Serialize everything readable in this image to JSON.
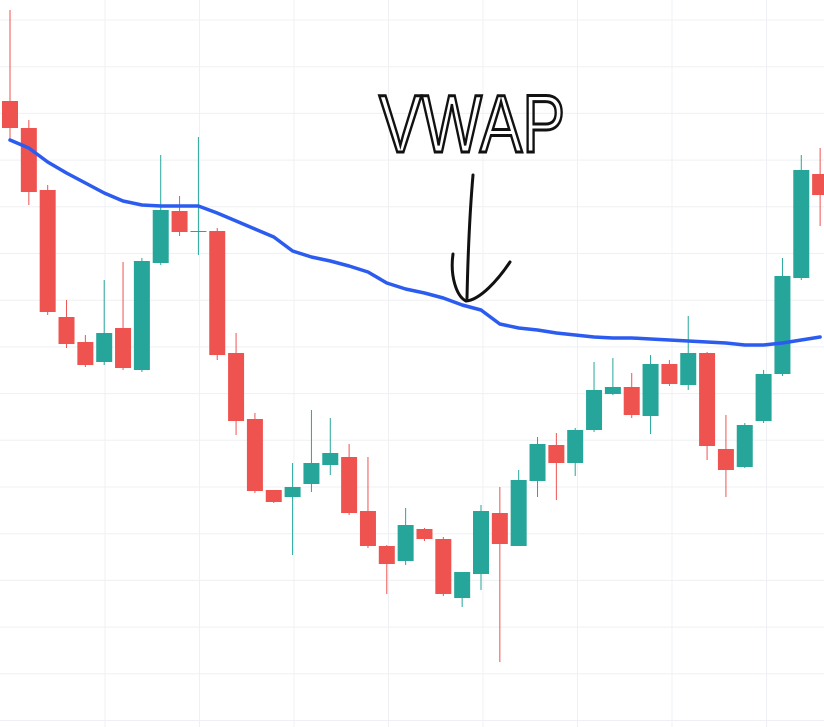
{
  "chart_data": {
    "type": "candlestick",
    "annotation": "VWAP",
    "categories": [
      null,
      null,
      null,
      null,
      null,
      null,
      null,
      null,
      null,
      null,
      null,
      null,
      null,
      null,
      null,
      null,
      null,
      null,
      null,
      null,
      null,
      null,
      null,
      null,
      null,
      null,
      null,
      null,
      null,
      null,
      null,
      null,
      null,
      null,
      null,
      null,
      null,
      null,
      null,
      null,
      null,
      null,
      null,
      null
    ],
    "open": [
      626,
      599,
      537,
      410,
      385,
      365,
      399,
      357,
      464,
      516,
      495,
      496,
      374,
      308,
      237,
      230,
      243,
      262,
      270,
      216,
      181,
      166,
      198,
      188,
      129,
      153,
      214,
      181,
      246,
      282,
      264,
      297,
      333,
      340,
      311,
      363,
      342,
      374,
      278,
      260,
      306,
      353,
      449,
      553
    ],
    "high": [
      717,
      607,
      542,
      427,
      392,
      447,
      465,
      469,
      572,
      531,
      590,
      499,
      394,
      314,
      237,
      264,
      317,
      309,
      283,
      270,
      182,
      219,
      199,
      190,
      155,
      222,
      240,
      257,
      290,
      294,
      299,
      365,
      369,
      354,
      372,
      367,
      411,
      375,
      312,
      304,
      357,
      469,
      572,
      579
    ],
    "low": [
      587,
      522,
      412,
      379,
      360,
      362,
      357,
      355,
      462,
      491,
      472,
      367,
      292,
      234,
      224,
      172,
      235,
      252,
      212,
      179,
      133,
      162,
      186,
      131,
      120,
      137,
      65,
      181,
      230,
      227,
      251,
      295,
      332,
      309,
      293,
      341,
      337,
      267,
      230,
      259,
      304,
      351,
      447,
      501
    ],
    "close": [
      599,
      535,
      415,
      383,
      362,
      394,
      359,
      466,
      517,
      495,
      496,
      372,
      306,
      236,
      225,
      240,
      264,
      274,
      214,
      181,
      163,
      202,
      188,
      133,
      155,
      216,
      183,
      247,
      283,
      264,
      297,
      337,
      340,
      312,
      363,
      343,
      374,
      281,
      257,
      302,
      353,
      451,
      557,
      532
    ],
    "up_color": "#26a69a",
    "down_color": "#ef5350",
    "vwap": {
      "color": "#2b5cef",
      "values": [
        587,
        579,
        565,
        554,
        544,
        534,
        526,
        522,
        521,
        521,
        521,
        514,
        506,
        498,
        490,
        476,
        470,
        466,
        461,
        455,
        444,
        438,
        434,
        429,
        422,
        417,
        403,
        399,
        397,
        394,
        392,
        390,
        389,
        389,
        388,
        387,
        386,
        385,
        384,
        382,
        382,
        384,
        387,
        390
      ]
    },
    "ylim": [
      0,
      727
    ],
    "grid": true
  }
}
